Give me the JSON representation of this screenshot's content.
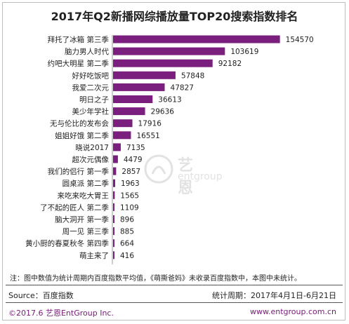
{
  "title": "2017年Q2新播网综播放量TOP20搜索指数排名",
  "watermark": {
    "chinese": "艺恩",
    "english": "entgroup"
  },
  "chart_data": {
    "type": "bar",
    "orientation": "horizontal",
    "bar_color": "#7b1f7e",
    "categories": [
      "拜托了冰箱 第三季",
      "脑力男人时代",
      "约吧大明星 第二季",
      "好好吃饭吧",
      "我爱二次元",
      "明日之子",
      "美少年学社",
      "无与伦比的发布会",
      "姐姐好饿 第二季",
      "晓说2017",
      "超次元偶像",
      "我们的侣行 第一季",
      "圆桌派 第二季",
      "来吃来吃大胃王",
      "了不起的匠人 第二季",
      "脑大洞开 第一季",
      "周一见 第三季",
      "黄小厨的春夏秋冬 第四季",
      "萌主来了"
    ],
    "values": [
      154570,
      103619,
      92182,
      57848,
      47827,
      36613,
      29636,
      17916,
      16551,
      7135,
      4479,
      2857,
      1963,
      1565,
      1109,
      896,
      885,
      664,
      416
    ],
    "xlim": [
      0,
      160000
    ]
  },
  "footer": {
    "note": "注：图中数值为统计周期内百度指数平均值，《萌撕爸妈》未收录百度指数中，本图中未统计。",
    "source": "Source：百度指数",
    "period": "统计周期：2017年4月1日-6月21日",
    "copyright": "©2017.6 艺恩EntGroup Inc.",
    "website": "www.entgroup.com.cn"
  }
}
